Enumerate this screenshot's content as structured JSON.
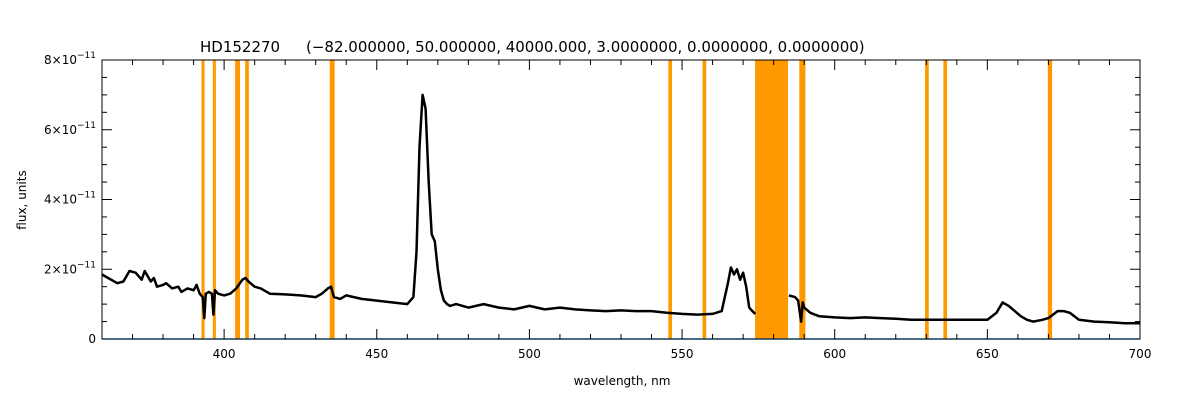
{
  "chart_data": {
    "type": "line",
    "title_object": "HD152270",
    "title_params": "(−82.000000, 50.000000, 40000.000, 3.0000000, 0.0000000, 0.0000000)",
    "xlabel": "wavelength, nm",
    "ylabel": "flux, units",
    "xlim": [
      360,
      700
    ],
    "ylim": [
      0,
      8e-11
    ],
    "x_ticks": [
      400,
      450,
      500,
      550,
      600,
      650,
      700
    ],
    "y_ticks": [
      {
        "value": 0,
        "base": "0",
        "exp": ""
      },
      {
        "value": 2e-11,
        "base": "2×10",
        "exp": "−11"
      },
      {
        "value": 4e-11,
        "base": "4×10",
        "exp": "−11"
      },
      {
        "value": 6e-11,
        "base": "6×10",
        "exp": "−11"
      },
      {
        "value": 8e-11,
        "base": "8×10",
        "exp": "−11"
      }
    ],
    "grid": false,
    "colors": {
      "spectrum": "#000000",
      "mask": "#ff9900",
      "baseline": "#33aaff"
    },
    "masked_regions": [
      [
        392.6,
        393.6
      ],
      [
        396.3,
        397.3
      ],
      [
        403.6,
        405.2
      ],
      [
        406.9,
        408.1
      ],
      [
        434.6,
        436.2
      ],
      [
        545.5,
        546.7
      ],
      [
        556.7,
        557.9
      ],
      [
        573.9,
        584.7
      ],
      [
        588.4,
        590.4
      ],
      [
        629.6,
        630.8
      ],
      [
        635.6,
        636.8
      ],
      [
        669.8,
        671.2
      ]
    ],
    "series": [
      {
        "x": [
          360,
          362,
          365,
          367,
          369,
          371,
          373,
          374,
          376,
          377,
          378,
          380,
          381,
          383,
          385,
          386,
          388,
          390,
          391,
          392,
          393,
          393.5,
          394,
          395,
          396,
          396.5,
          397,
          398,
          400,
          402,
          404,
          406,
          407,
          408,
          410,
          412,
          415,
          420,
          425,
          430,
          432,
          434,
          435,
          436,
          438,
          440,
          445,
          450,
          455,
          460,
          462,
          463,
          464,
          465,
          466,
          467,
          468,
          469,
          470,
          471,
          472,
          473,
          474,
          476,
          480,
          485,
          490,
          495,
          500,
          505,
          510,
          515,
          520,
          525,
          530,
          535,
          540,
          545,
          550,
          555,
          560,
          563,
          565,
          566,
          567,
          568,
          569,
          570,
          571,
          572,
          573,
          574,
          585,
          587,
          588,
          589,
          589.5,
          590,
          592,
          595,
          600,
          605,
          610,
          615,
          620,
          625,
          630,
          635,
          640,
          645,
          650,
          653,
          655,
          657,
          659,
          661,
          663,
          665,
          668,
          670,
          673,
          675,
          677,
          680,
          685,
          690,
          695,
          700
        ],
        "y": [
          1.85e-11,
          1.75e-11,
          1.6e-11,
          1.65e-11,
          1.95e-11,
          1.9e-11,
          1.7e-11,
          1.95e-11,
          1.65e-11,
          1.75e-11,
          1.5e-11,
          1.55e-11,
          1.6e-11,
          1.45e-11,
          1.5e-11,
          1.35e-11,
          1.45e-11,
          1.4e-11,
          1.55e-11,
          1.3e-11,
          1.2e-11,
          6e-12,
          1.3e-11,
          1.35e-11,
          1.3e-11,
          7e-12,
          1.4e-11,
          1.3e-11,
          1.25e-11,
          1.3e-11,
          1.45e-11,
          1.7e-11,
          1.75e-11,
          1.65e-11,
          1.5e-11,
          1.45e-11,
          1.3e-11,
          1.28e-11,
          1.25e-11,
          1.2e-11,
          1.3e-11,
          1.45e-11,
          1.5e-11,
          1.2e-11,
          1.15e-11,
          1.25e-11,
          1.15e-11,
          1.1e-11,
          1.05e-11,
          1e-11,
          1.2e-11,
          2.5e-11,
          5.5e-11,
          7e-11,
          6.6e-11,
          4.5e-11,
          3e-11,
          2.8e-11,
          2e-11,
          1.4e-11,
          1.1e-11,
          1e-11,
          9.5e-12,
          1e-11,
          9e-12,
          1e-11,
          9e-12,
          8.5e-12,
          9.5e-12,
          8.5e-12,
          9e-12,
          8.5e-12,
          8.2e-12,
          8e-12,
          8.2e-12,
          8e-12,
          8e-12,
          7.5e-12,
          7.2e-12,
          7e-12,
          7.2e-12,
          8e-12,
          1.6e-11,
          2.05e-11,
          1.85e-11,
          2e-11,
          1.7e-11,
          1.9e-11,
          1.5e-11,
          9e-12,
          8e-12,
          7.2e-12,
          1.25e-11,
          1.2e-11,
          1.1e-11,
          5e-12,
          1.05e-11,
          9e-12,
          7.5e-12,
          6.5e-12,
          6.2e-12,
          6e-12,
          6.2e-12,
          6e-12,
          5.8e-12,
          5.5e-12,
          5.5e-12,
          5.5e-12,
          5.5e-12,
          5.5e-12,
          5.5e-12,
          7.5e-12,
          1.05e-11,
          9.5e-12,
          8e-12,
          6.5e-12,
          5.5e-12,
          5e-12,
          5.5e-12,
          6e-12,
          8e-12,
          8e-12,
          7.5e-12,
          5.5e-12,
          5e-12,
          4.8e-12,
          4.5e-12,
          4.5e-12
        ]
      }
    ]
  }
}
